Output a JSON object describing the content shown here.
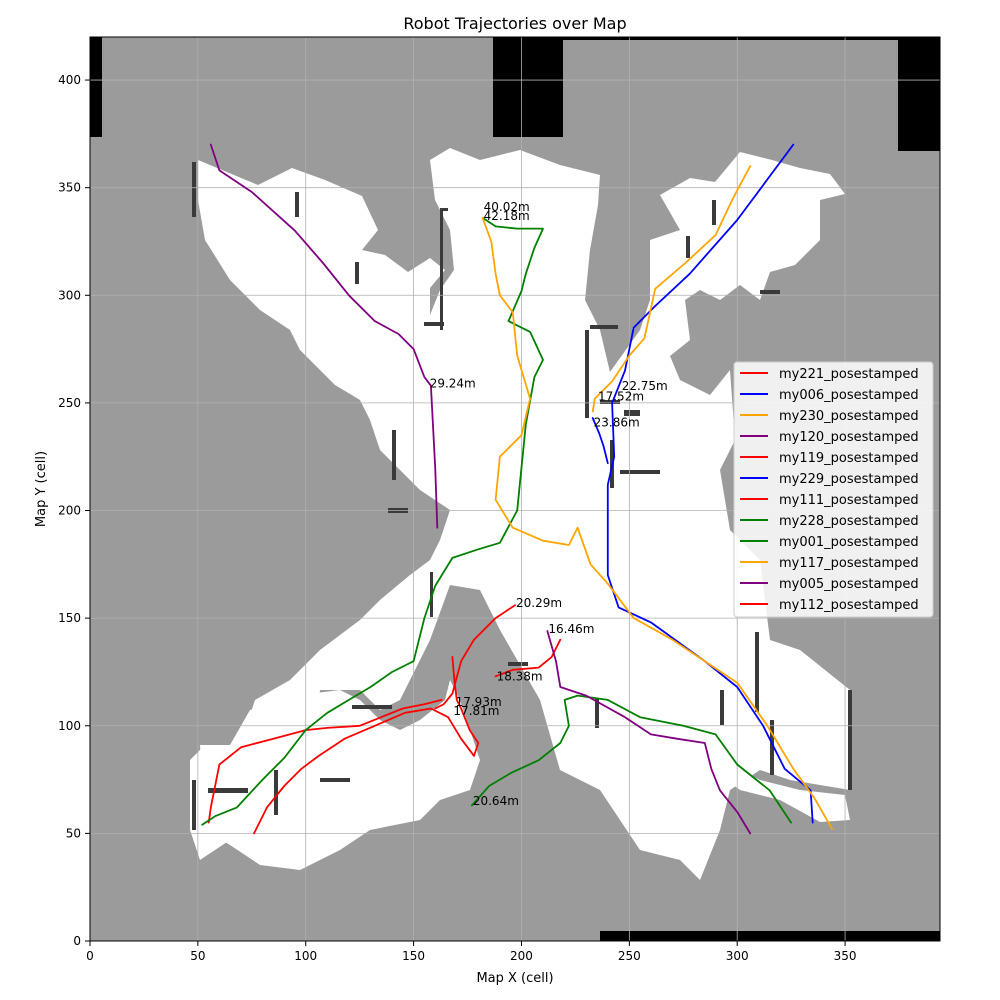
{
  "chart_data": {
    "type": "line",
    "title": "Robot Trajectories over Map",
    "xlabel": "Map X (cell)",
    "ylabel": "Map Y (cell)",
    "xlim": [
      0,
      394
    ],
    "ylim": [
      0,
      420
    ],
    "xticks": [
      0,
      50,
      100,
      150,
      200,
      250,
      300,
      350
    ],
    "yticks": [
      0,
      50,
      100,
      150,
      200,
      250,
      300,
      350,
      400
    ],
    "grid": true,
    "legend_position": "center-right",
    "colors": {
      "unknown": "#9b9b9b",
      "free": "#ffffff",
      "occupied": "#000000",
      "wall": "#3a3a3a"
    },
    "series": [
      {
        "name": "my221_posestamped",
        "color": "#ff0000",
        "label": "20.29m",
        "label_at": [
          197,
          156
        ],
        "points": [
          [
            197,
            156
          ],
          [
            188,
            150
          ],
          [
            178,
            140
          ],
          [
            172,
            130
          ],
          [
            168,
            115
          ],
          [
            164,
            110
          ],
          [
            160,
            108
          ]
        ]
      },
      {
        "name": "my006_posestamped",
        "color": "#0000ff",
        "label": "22.75m",
        "label_at": [
          246,
          257
        ],
        "points": [
          [
            326,
            370
          ],
          [
            300,
            335
          ],
          [
            278,
            310
          ],
          [
            262,
            295
          ],
          [
            252,
            285
          ],
          [
            248,
            265
          ],
          [
            242,
            250
          ],
          [
            243,
            225
          ],
          [
            240,
            212
          ],
          [
            240,
            190
          ],
          [
            240,
            170
          ],
          [
            245,
            155
          ],
          [
            260,
            148
          ],
          [
            285,
            130
          ],
          [
            300,
            118
          ],
          [
            312,
            100
          ],
          [
            322,
            80
          ],
          [
            334,
            70
          ],
          [
            335,
            55
          ]
        ]
      },
      {
        "name": "my230_posestamped",
        "color": "#ffa500",
        "label": "17.52m",
        "label_at": [
          235,
          252
        ],
        "points": [
          [
            306,
            360
          ],
          [
            298,
            345
          ],
          [
            290,
            328
          ],
          [
            276,
            315
          ],
          [
            262,
            303
          ],
          [
            257,
            280
          ],
          [
            250,
            272
          ],
          [
            242,
            260
          ],
          [
            234,
            252
          ],
          [
            233,
            246
          ]
        ]
      },
      {
        "name": "my120_posestamped",
        "color": "#800080",
        "label": "29.24m",
        "label_at": [
          157,
          258
        ],
        "points": [
          [
            56,
            370
          ],
          [
            60,
            358
          ],
          [
            75,
            348
          ],
          [
            95,
            330
          ],
          [
            108,
            315
          ],
          [
            120,
            300
          ],
          [
            132,
            288
          ],
          [
            143,
            282
          ],
          [
            150,
            275
          ],
          [
            155,
            262
          ],
          [
            158,
            258
          ],
          [
            160,
            220
          ],
          [
            161,
            192
          ]
        ]
      },
      {
        "name": "my119_posestamped",
        "color": "#ff0000",
        "label": "18.38m",
        "label_at": [
          188,
          122
        ],
        "points": [
          [
            188,
            123
          ],
          [
            196,
            126
          ],
          [
            208,
            127
          ],
          [
            214,
            132
          ],
          [
            218,
            140
          ]
        ]
      },
      {
        "name": "my229_posestamped",
        "color": "#0000ff",
        "label": "23.86m",
        "label_at": [
          233,
          240
        ],
        "points": [
          [
            233,
            243
          ],
          [
            236,
            236
          ],
          [
            238,
            230
          ],
          [
            240,
            222
          ]
        ]
      },
      {
        "name": "my111_posestamped",
        "color": "#ff0000",
        "label": "17.93m",
        "label_at": [
          169,
          110
        ],
        "points": [
          [
            163,
            112
          ],
          [
            155,
            110
          ],
          [
            145,
            108
          ],
          [
            135,
            104
          ],
          [
            125,
            100
          ],
          [
            110,
            99
          ],
          [
            100,
            98
          ],
          [
            85,
            94
          ],
          [
            70,
            90
          ],
          [
            60,
            82
          ],
          [
            56,
            62
          ],
          [
            55,
            55
          ]
        ]
      },
      {
        "name": "my228_posestamped",
        "color": "#008000",
        "label": "42.18m",
        "label_at": [
          182,
          336
        ],
        "points": [
          [
            182,
            336
          ],
          [
            188,
            332
          ],
          [
            198,
            331
          ],
          [
            210,
            331
          ],
          [
            206,
            322
          ],
          [
            202,
            310
          ],
          [
            200,
            302
          ],
          [
            194,
            288
          ],
          [
            204,
            283
          ],
          [
            210,
            270
          ],
          [
            206,
            262
          ],
          [
            202,
            240
          ],
          [
            198,
            200
          ],
          [
            190,
            185
          ],
          [
            180,
            182
          ],
          [
            168,
            178
          ],
          [
            160,
            165
          ],
          [
            155,
            150
          ],
          [
            150,
            130
          ],
          [
            140,
            125
          ],
          [
            130,
            118
          ],
          [
            120,
            112
          ],
          [
            110,
            106
          ],
          [
            100,
            98
          ],
          [
            90,
            85
          ],
          [
            80,
            75
          ],
          [
            68,
            62
          ],
          [
            58,
            58
          ],
          [
            52,
            54
          ]
        ]
      },
      {
        "name": "my001_posestamped",
        "color": "#008000",
        "label": "20.64m",
        "label_at": [
          177,
          64
        ],
        "points": [
          [
            177,
            63
          ],
          [
            185,
            72
          ],
          [
            195,
            78
          ],
          [
            208,
            84
          ],
          [
            218,
            92
          ],
          [
            222,
            100
          ],
          [
            220,
            112
          ],
          [
            226,
            114
          ],
          [
            240,
            112
          ],
          [
            255,
            104
          ],
          [
            275,
            100
          ],
          [
            290,
            96
          ],
          [
            300,
            82
          ],
          [
            315,
            70
          ],
          [
            325,
            55
          ]
        ]
      },
      {
        "name": "my117_posestamped",
        "color": "#ffa500",
        "label": "40.02m",
        "label_at": [
          182,
          340
        ],
        "points": [
          [
            182,
            336
          ],
          [
            186,
            325
          ],
          [
            188,
            310
          ],
          [
            190,
            300
          ],
          [
            196,
            292
          ],
          [
            198,
            272
          ],
          [
            204,
            252
          ],
          [
            200,
            235
          ],
          [
            190,
            225
          ],
          [
            188,
            205
          ],
          [
            196,
            192
          ],
          [
            210,
            186
          ],
          [
            222,
            184
          ],
          [
            226,
            192
          ],
          [
            232,
            175
          ],
          [
            240,
            166
          ],
          [
            252,
            150
          ],
          [
            270,
            140
          ],
          [
            285,
            130
          ],
          [
            300,
            120
          ],
          [
            314,
            100
          ],
          [
            326,
            80
          ],
          [
            336,
            66
          ],
          [
            344,
            52
          ]
        ]
      },
      {
        "name": "my005_posestamped",
        "color": "#800080",
        "label": "16.46m",
        "label_at": [
          212,
          144
        ],
        "points": [
          [
            212,
            144
          ],
          [
            216,
            130
          ],
          [
            218,
            118
          ],
          [
            230,
            114
          ],
          [
            248,
            104
          ],
          [
            260,
            96
          ],
          [
            272,
            94
          ],
          [
            285,
            92
          ],
          [
            288,
            80
          ],
          [
            292,
            70
          ],
          [
            300,
            60
          ],
          [
            306,
            50
          ]
        ]
      },
      {
        "name": "my112_posestamped",
        "color": "#ff0000",
        "label": "17.81m",
        "label_at": [
          168,
          106
        ],
        "points": [
          [
            168,
            132
          ],
          [
            169,
            120
          ],
          [
            170,
            112
          ],
          [
            172,
            108
          ],
          [
            176,
            98
          ],
          [
            180,
            92
          ],
          [
            178,
            86
          ],
          [
            172,
            94
          ],
          [
            166,
            104
          ],
          [
            158,
            108
          ],
          [
            146,
            106
          ],
          [
            132,
            100
          ],
          [
            118,
            94
          ],
          [
            106,
            86
          ],
          [
            98,
            80
          ],
          [
            90,
            72
          ],
          [
            82,
            62
          ],
          [
            76,
            50
          ]
        ]
      }
    ]
  }
}
